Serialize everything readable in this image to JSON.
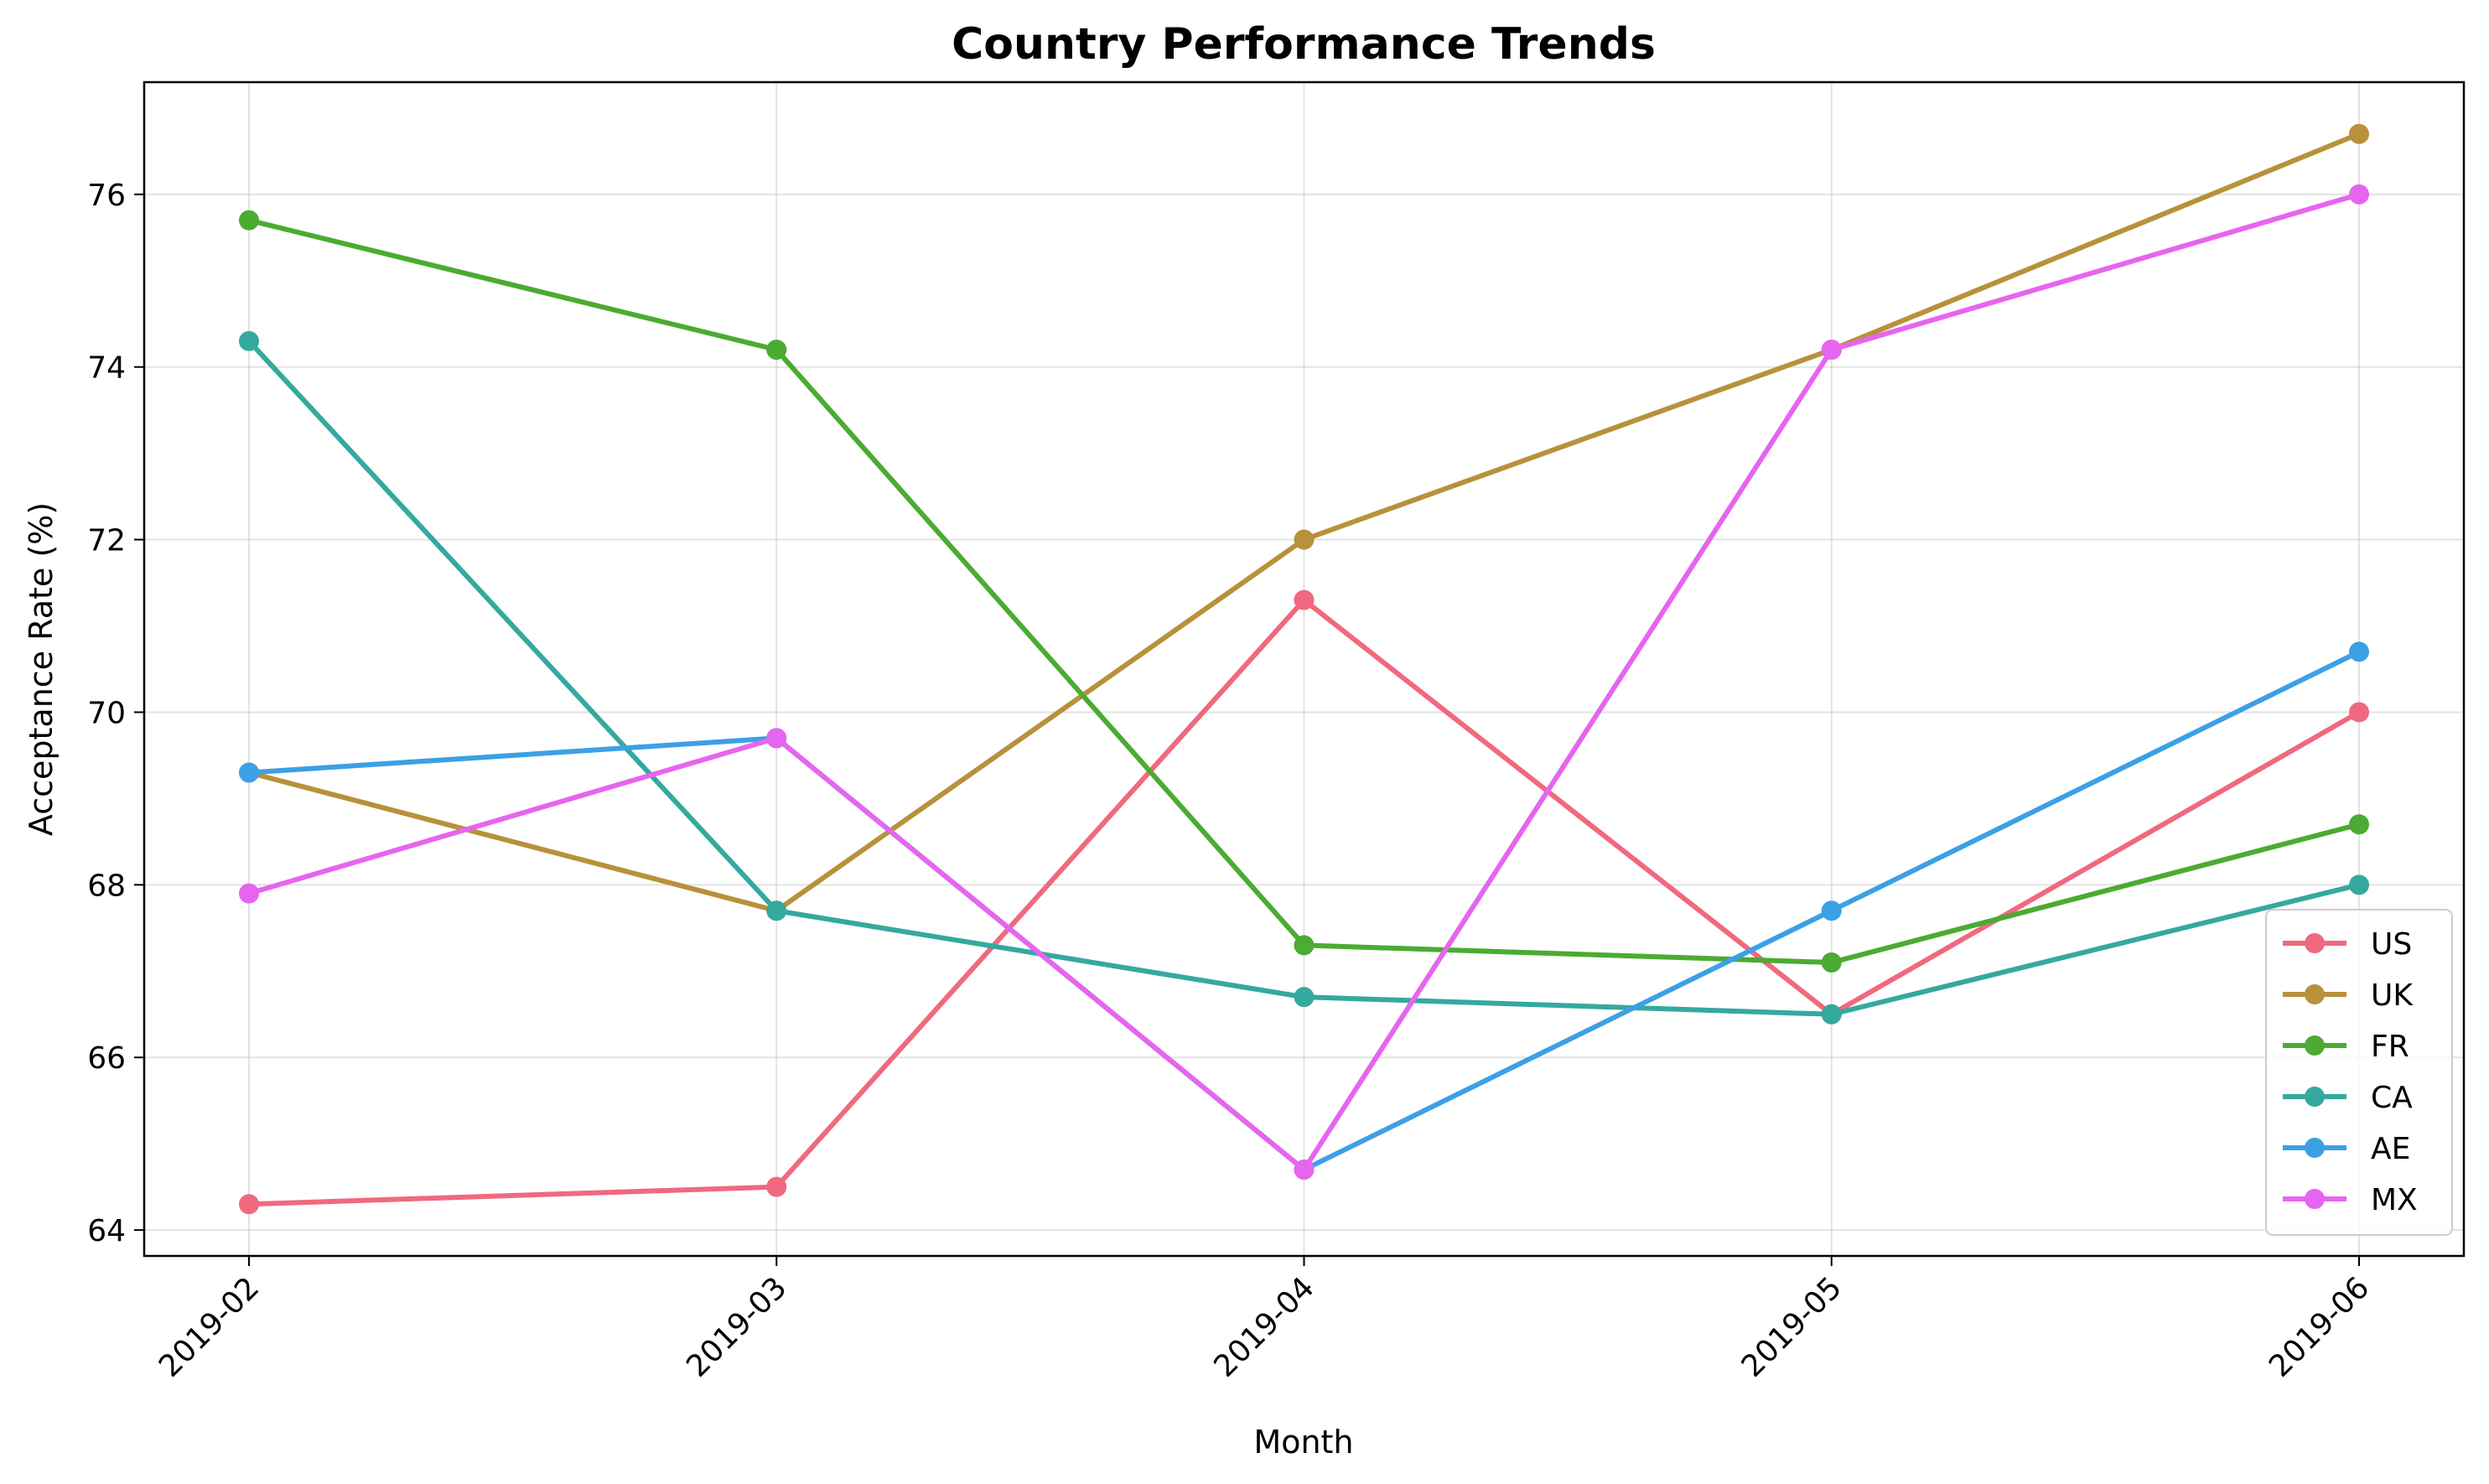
{
  "chart_data": {
    "type": "line",
    "title": "Country Performance Trends",
    "xlabel": "Month",
    "ylabel": "Acceptance Rate (%)",
    "categories": [
      "2019-02",
      "2019-03",
      "2019-04",
      "2019-05",
      "2019-06"
    ],
    "ylim": [
      63.7,
      77.3
    ],
    "yticks": [
      64,
      66,
      68,
      70,
      72,
      74,
      76
    ],
    "grid": true,
    "legend_position": "bottom-right",
    "series": [
      {
        "name": "US",
        "color": "#f0697f",
        "values": [
          64.3,
          64.5,
          71.3,
          66.5,
          70.0
        ]
      },
      {
        "name": "UK",
        "color": "#b8913a",
        "values": [
          69.3,
          67.7,
          72.0,
          74.2,
          76.7
        ]
      },
      {
        "name": "FR",
        "color": "#4bab32",
        "values": [
          75.7,
          74.2,
          67.3,
          67.1,
          68.7
        ]
      },
      {
        "name": "CA",
        "color": "#35a99e",
        "values": [
          74.3,
          67.7,
          66.7,
          66.5,
          68.0
        ]
      },
      {
        "name": "AE",
        "color": "#3ca0e5",
        "values": [
          69.3,
          69.7,
          64.7,
          67.7,
          70.7
        ]
      },
      {
        "name": "MX",
        "color": "#e665ef",
        "values": [
          67.9,
          69.7,
          64.7,
          74.2,
          76.0
        ]
      }
    ]
  }
}
